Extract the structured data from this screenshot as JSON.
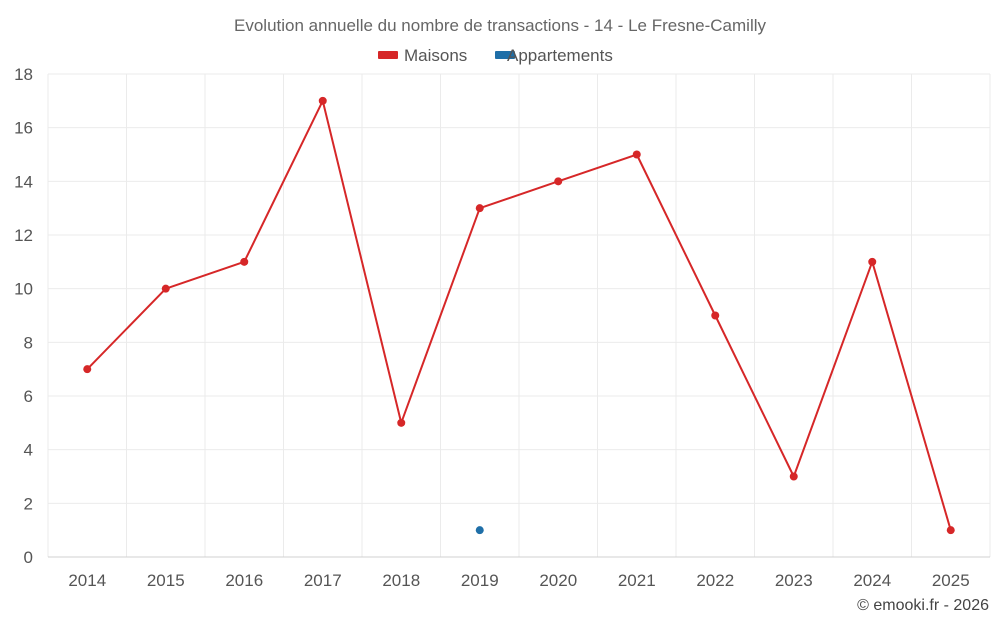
{
  "chart_data": {
    "type": "line",
    "title": "Evolution annuelle du nombre de transactions - 14 - Le Fresne-Camilly",
    "categories": [
      "2014",
      "2015",
      "2016",
      "2017",
      "2018",
      "2019",
      "2020",
      "2021",
      "2022",
      "2023",
      "2024",
      "2025"
    ],
    "series": [
      {
        "name": "Maisons",
        "color": "#d62728",
        "values": [
          7,
          10,
          11,
          17,
          5,
          13,
          14,
          15,
          9,
          3,
          11,
          1
        ]
      },
      {
        "name": "Appartements",
        "color": "#1f6fa8",
        "values": [
          null,
          null,
          null,
          null,
          null,
          1,
          null,
          null,
          null,
          null,
          null,
          null
        ]
      }
    ],
    "ylim": [
      0,
      18
    ],
    "yticks": [
      0,
      2,
      4,
      6,
      8,
      10,
      12,
      14,
      16,
      18
    ],
    "xlabel": "",
    "ylabel": "",
    "grid": true,
    "legend_position": "top-center"
  },
  "credit": "© emooki.fr - 2026"
}
